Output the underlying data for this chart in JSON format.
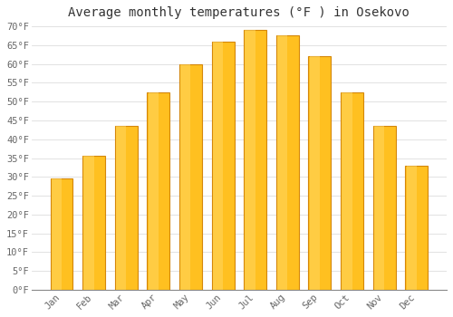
{
  "title": "Average monthly temperatures (°F ) in Osekovo",
  "months": [
    "Jan",
    "Feb",
    "Mar",
    "Apr",
    "May",
    "Jun",
    "Jul",
    "Aug",
    "Sep",
    "Oct",
    "Nov",
    "Dec"
  ],
  "values": [
    29.5,
    35.5,
    43.5,
    52.5,
    60.0,
    66.0,
    69.0,
    67.5,
    62.0,
    52.5,
    43.5,
    33.0
  ],
  "bar_color_main": "#FFC020",
  "bar_color_edge": "#D4870A",
  "ylim": [
    0,
    70
  ],
  "yticks": [
    0,
    5,
    10,
    15,
    20,
    25,
    30,
    35,
    40,
    45,
    50,
    55,
    60,
    65,
    70
  ],
  "ytick_labels": [
    "0°F",
    "5°F",
    "10°F",
    "15°F",
    "20°F",
    "25°F",
    "30°F",
    "35°F",
    "40°F",
    "45°F",
    "50°F",
    "55°F",
    "60°F",
    "65°F",
    "70°F"
  ],
  "background_color": "#FFFFFF",
  "grid_color": "#DDDDDD",
  "title_fontsize": 10,
  "tick_fontsize": 7.5,
  "font_family": "monospace",
  "title_color": "#333333",
  "tick_color": "#666666",
  "bar_width": 0.7
}
